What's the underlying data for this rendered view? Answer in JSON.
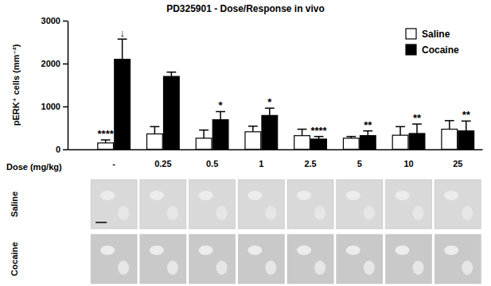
{
  "chart_data": {
    "type": "bar",
    "title": "PD325901 - Dose/Response in vivo",
    "x_label": "Dose (mg/kg)",
    "y_label": "pERK⁺ cells (mm⁻²)",
    "categories": [
      "-",
      "0.25",
      "0.5",
      "1",
      "2.5",
      "5",
      "10",
      "25"
    ],
    "series": [
      {
        "name": "Saline",
        "color": "#ffffff",
        "values": [
          150,
          360,
          260,
          410,
          320,
          260,
          330,
          470
        ],
        "errors": [
          70,
          170,
          190,
          130,
          150,
          40,
          200,
          200
        ]
      },
      {
        "name": "Cocaine",
        "color": "#000000",
        "values": [
          2100,
          1700,
          690,
          790,
          240,
          320,
          370,
          430
        ],
        "errors": [
          470,
          100,
          190,
          170,
          60,
          110,
          220,
          230
        ]
      }
    ],
    "ylim": [
      0,
      3000
    ],
    "yticks": [
      0,
      1000,
      2000,
      3000
    ],
    "grid": false,
    "legend": "top-right",
    "annotations": [
      {
        "text": "****",
        "category": "-",
        "series": "Saline"
      },
      {
        "text": "↓",
        "category": "-",
        "series": "Cocaine"
      },
      {
        "text": "*",
        "category": "0.5",
        "series": "Cocaine"
      },
      {
        "text": "*",
        "category": "1",
        "series": "Cocaine"
      },
      {
        "text": "****",
        "category": "2.5",
        "series": "Cocaine"
      },
      {
        "text": "**",
        "category": "5",
        "series": "Cocaine"
      },
      {
        "text": "**",
        "category": "10",
        "series": "Cocaine"
      },
      {
        "text": "**",
        "category": "25",
        "series": "Cocaine"
      }
    ]
  }
}
